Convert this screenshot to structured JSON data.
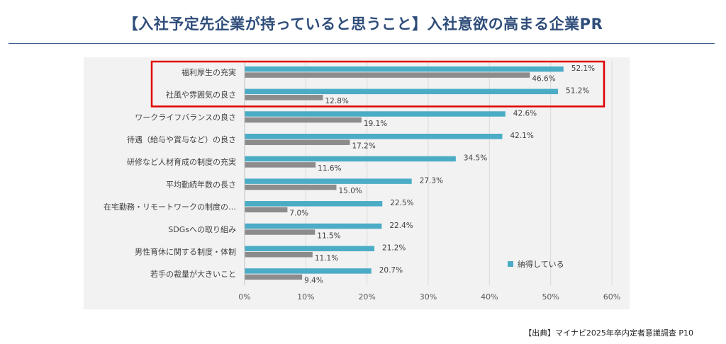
{
  "title": "【入社予定先企業が持っていると思うこと】入社意欲の高まる企業PR",
  "source": "【出典】マイナビ2025年卒内定者意識調査 P10",
  "colors": {
    "series_1": "#4bacc6",
    "series_2": "#8c8c8c",
    "highlight": "#e00000",
    "title": "#2f4d7a"
  },
  "chart_data": {
    "type": "bar",
    "orientation": "horizontal",
    "categories": [
      "福利厚生の充実",
      "社風や雰囲気の良さ",
      "ワークライフバランスの良さ",
      "待遇（給与や賞与など）の良さ",
      "研修など人材育成の制度の充実",
      "平均勤続年数の長さ",
      "在宅勤務・リモートワークの制度の…",
      "SDGsへの取り組み",
      "男性育休に関する制度・体制",
      "若手の裁量が大きいこと"
    ],
    "series": [
      {
        "name": "納得している",
        "values": [
          52.1,
          51.2,
          42.6,
          42.1,
          34.5,
          27.3,
          22.5,
          22.4,
          21.2,
          20.7
        ]
      },
      {
        "values": [
          46.6,
          12.8,
          19.1,
          17.2,
          11.6,
          15.0,
          7.0,
          11.5,
          11.1,
          9.4
        ]
      }
    ],
    "xlim": [
      0,
      60
    ],
    "xticks": [
      "0%",
      "10%",
      "20%",
      "30%",
      "40%",
      "50%",
      "60%"
    ],
    "value_labels_1": [
      "52.1%",
      "51.2%",
      "42.6%",
      "42.1%",
      "34.5%",
      "27.3%",
      "22.5%",
      "22.4%",
      "21.2%",
      "20.7%"
    ],
    "value_labels_2": [
      "46.6%",
      "12.8%",
      "19.1%",
      "17.2%",
      "11.6%",
      "15.0%",
      "7.0%",
      "11.5%",
      "11.1%",
      "9.4%"
    ],
    "highlighted_categories": [
      0,
      1
    ],
    "gridlines": true,
    "legend_position": "bottom-right"
  }
}
